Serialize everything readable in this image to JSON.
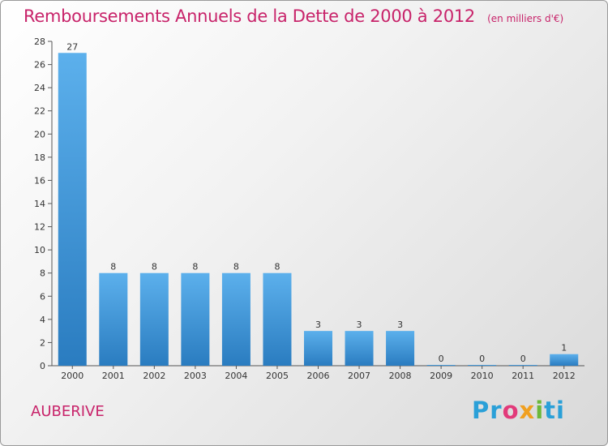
{
  "title": "Remboursements Annuels de la Dette de 2000 à 2012",
  "unit_note": "(en milliers d'€)",
  "commune": "AUBERIVE",
  "brand": [
    "Pr",
    "o",
    "x",
    "i",
    "ti"
  ],
  "colors": {
    "title": "#c8236a",
    "bar_light": "#5cb0ec",
    "bar_dark": "#2a7cc0",
    "axis": "#555555"
  },
  "chart_data": {
    "type": "bar",
    "title": "Remboursements Annuels de la Dette de 2000 à 2012",
    "categories": [
      "2000",
      "2001",
      "2002",
      "2003",
      "2004",
      "2005",
      "2006",
      "2007",
      "2008",
      "2009",
      "2010",
      "2011",
      "2012"
    ],
    "values": [
      27,
      8,
      8,
      8,
      8,
      8,
      3,
      3,
      3,
      0,
      0,
      0,
      1
    ],
    "data_labels": [
      "27",
      "8",
      "8",
      "8",
      "8",
      "8",
      "3",
      "3",
      "3",
      "0",
      "0",
      "0",
      "1"
    ],
    "y_ticks": [
      "0",
      "2",
      "4",
      "6",
      "8",
      "10",
      "12",
      "14",
      "16",
      "18",
      "20",
      "22",
      "24",
      "26",
      "28"
    ],
    "ylim": [
      0,
      28
    ],
    "xlabel": "",
    "ylabel": "",
    "grid": false,
    "legend": "none"
  }
}
